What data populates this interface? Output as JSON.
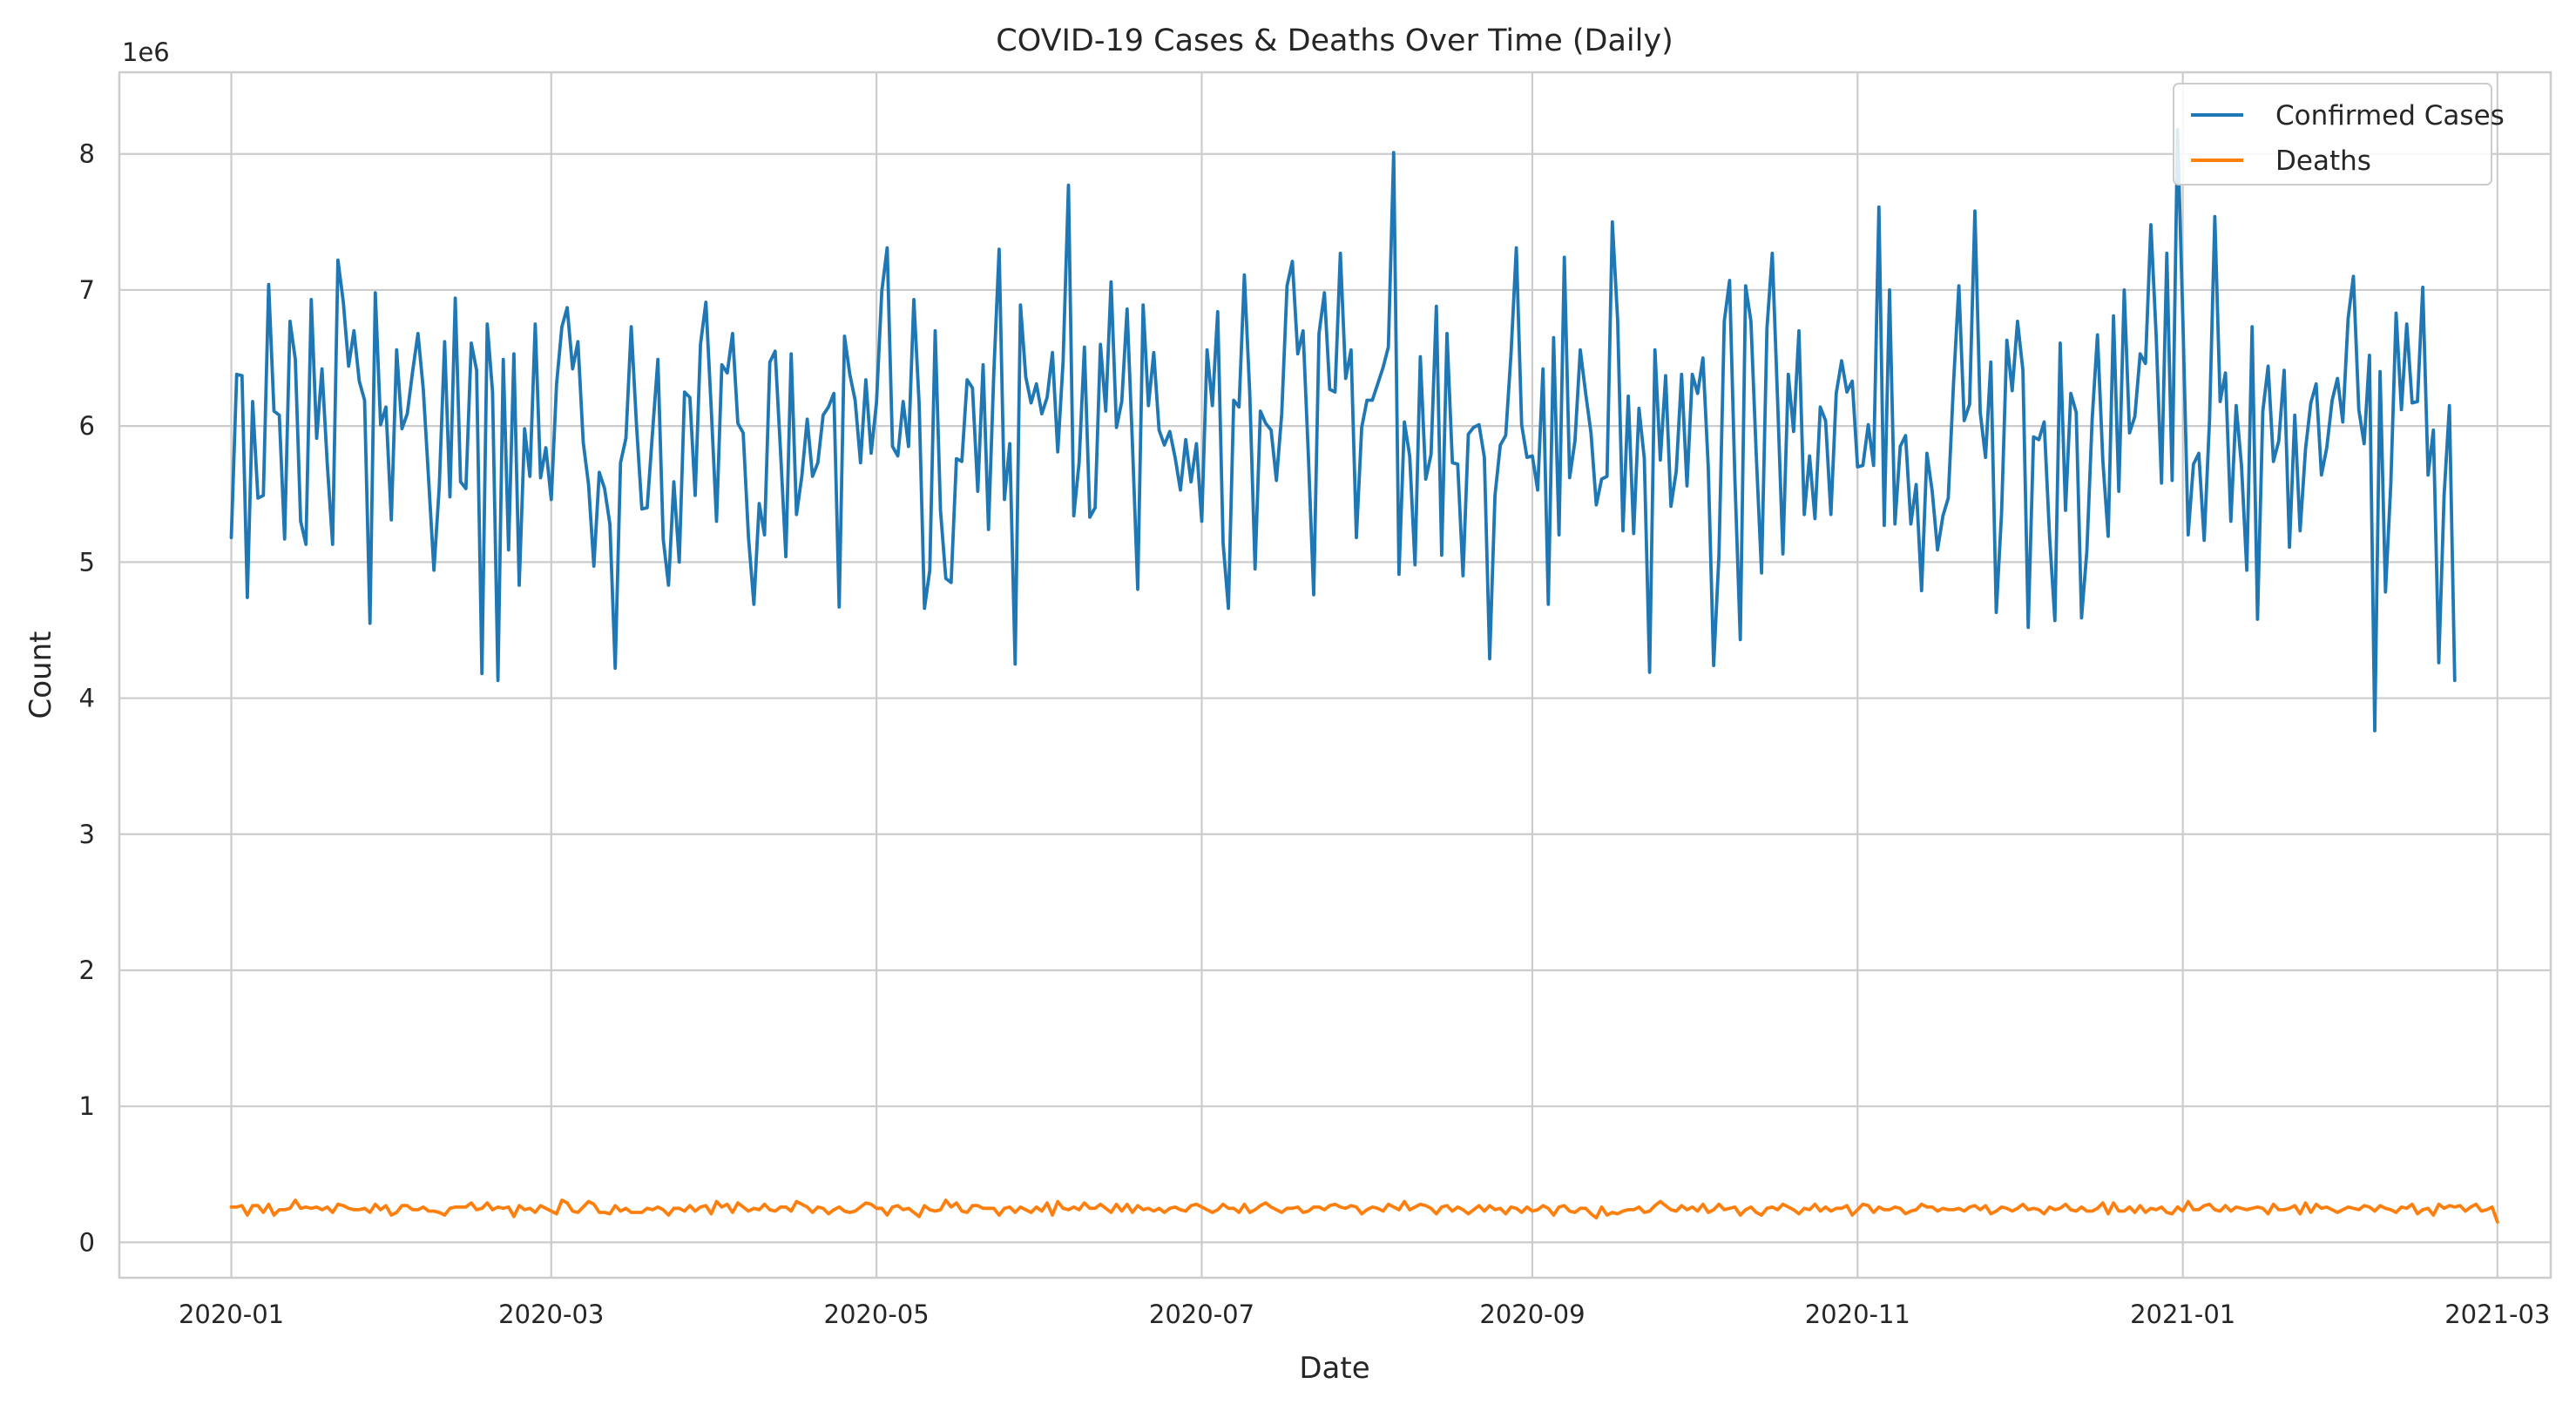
{
  "chart_data": {
    "type": "line",
    "title": "COVID-19 Cases & Deaths Over Time (Daily)",
    "xlabel": "Date",
    "ylabel": "Count",
    "y_offset_label": "1e6",
    "ylim": [
      -0.26,
      8.6
    ],
    "xlim": [
      "2019-12-11",
      "2021-03-11"
    ],
    "x_ticks": [
      "2020-01",
      "2020-03",
      "2020-05",
      "2020-07",
      "2020-09",
      "2020-11",
      "2021-01",
      "2021-03"
    ],
    "y_ticks": [
      0,
      1,
      2,
      3,
      4,
      5,
      6,
      7,
      8
    ],
    "y_tick_labels": [
      "0",
      "1",
      "2",
      "3",
      "4",
      "5",
      "6",
      "7",
      "8"
    ],
    "legend": {
      "placement": "top-right"
    },
    "start_date": "2020-01-01",
    "day_step": 1,
    "grid": true,
    "series": [
      {
        "name": "Confirmed Cases",
        "color": "#1f77b4",
        "unit": "millions",
        "values": [
          5.18,
          6.38,
          6.37,
          4.74,
          6.18,
          5.47,
          5.49,
          7.04,
          6.11,
          6.08,
          5.17,
          6.77,
          6.49,
          5.3,
          5.13,
          6.93,
          5.91,
          6.42,
          5.72,
          5.13,
          7.22,
          6.91,
          6.44,
          6.7,
          6.33,
          6.19,
          4.55,
          6.98,
          6.01,
          6.14,
          5.31,
          6.56,
          5.98,
          6.09,
          6.4,
          6.68,
          6.27,
          5.61,
          4.94,
          5.55,
          6.62,
          5.48,
          6.94,
          5.59,
          5.54,
          6.61,
          6.41,
          4.18,
          6.75,
          6.25,
          4.13,
          6.49,
          5.09,
          6.53,
          4.83,
          5.98,
          5.63,
          6.75,
          5.62,
          5.84,
          5.46,
          6.31,
          6.73,
          6.87,
          6.42,
          6.62,
          5.88,
          5.57,
          4.97,
          5.66,
          5.54,
          5.28,
          4.22,
          5.73,
          5.91,
          6.73,
          6.0,
          5.39,
          5.4,
          5.96,
          6.49,
          5.17,
          4.83,
          5.59,
          5.0,
          6.25,
          6.21,
          5.49,
          6.6,
          6.91,
          6.13,
          5.3,
          6.45,
          6.39,
          6.68,
          6.02,
          5.95,
          5.18,
          4.69,
          5.43,
          5.2,
          6.47,
          6.55,
          5.81,
          5.04,
          6.53,
          5.35,
          5.63,
          6.05,
          5.63,
          5.73,
          6.08,
          6.14,
          6.24,
          4.67,
          6.66,
          6.38,
          6.19,
          5.73,
          6.34,
          5.8,
          6.17,
          6.99,
          7.31,
          5.85,
          5.78,
          6.18,
          5.85,
          6.93,
          6.16,
          4.66,
          4.94,
          6.7,
          5.38,
          4.88,
          4.85,
          5.76,
          5.74,
          6.34,
          6.28,
          5.52,
          6.45,
          5.24,
          6.39,
          7.3,
          5.46,
          5.87,
          4.25,
          6.89,
          6.36,
          6.17,
          6.31,
          6.09,
          6.21,
          6.54,
          5.81,
          6.47,
          7.77,
          5.34,
          5.73,
          6.58,
          5.33,
          5.4,
          6.6,
          6.11,
          7.06,
          5.99,
          6.18,
          6.86,
          5.87,
          4.8,
          6.89,
          6.15,
          6.54,
          5.97,
          5.86,
          5.96,
          5.77,
          5.53,
          5.9,
          5.59,
          5.87,
          5.3,
          6.56,
          6.15,
          6.84,
          5.14,
          4.66,
          6.19,
          6.14,
          7.11,
          6.24,
          4.95,
          6.11,
          6.02,
          5.97,
          5.6,
          6.09,
          7.03,
          7.21,
          6.53,
          6.7,
          5.78,
          4.76,
          6.68,
          6.98,
          6.27,
          6.25,
          7.27,
          6.35,
          6.56,
          5.18,
          5.99,
          6.19,
          6.19,
          6.31,
          6.43,
          6.58,
          8.01,
          4.91,
          6.03,
          5.78,
          4.98,
          6.51,
          5.61,
          5.79,
          6.88,
          5.05,
          6.68,
          5.73,
          5.72,
          4.9,
          5.94,
          5.99,
          6.01,
          5.77,
          4.29,
          5.49,
          5.86,
          5.93,
          6.53,
          7.31,
          6.01,
          5.77,
          5.78,
          5.53,
          6.42,
          4.69,
          6.65,
          5.2,
          7.24,
          5.62,
          5.89,
          6.56,
          6.24,
          5.95,
          5.42,
          5.61,
          5.63,
          7.5,
          6.78,
          5.23,
          6.22,
          5.21,
          6.13,
          5.76,
          4.19,
          6.56,
          5.75,
          6.37,
          5.41,
          5.67,
          6.38,
          5.56,
          6.38,
          6.24,
          6.5,
          5.7,
          4.24,
          5.05,
          6.77,
          7.07,
          5.61,
          4.43,
          7.03,
          6.77,
          5.79,
          4.92,
          6.72,
          7.27,
          6.19,
          5.06,
          6.38,
          5.96,
          6.7,
          5.35,
          5.78,
          5.32,
          6.14,
          6.04,
          5.35,
          6.24,
          6.48,
          6.25,
          6.33,
          5.7,
          5.71,
          6.01,
          5.71,
          7.61,
          5.27,
          7.0,
          5.28,
          5.85,
          5.93,
          5.28,
          5.57,
          4.79,
          5.8,
          5.52,
          5.09,
          5.34,
          5.47,
          6.32,
          7.03,
          6.04,
          6.16,
          7.58,
          6.1,
          5.77,
          6.47,
          4.63,
          5.36,
          6.63,
          6.26,
          6.77,
          6.41,
          4.52,
          5.92,
          5.9,
          6.03,
          5.19,
          4.57,
          6.61,
          5.38,
          6.24,
          6.1,
          4.59,
          5.08,
          6.05,
          6.67,
          5.74,
          5.19,
          6.81,
          5.52,
          7.0,
          5.95,
          6.07,
          6.53,
          6.46,
          7.48,
          6.66,
          5.58,
          7.27,
          5.6,
          8.18,
          6.79,
          5.2,
          5.72,
          5.8,
          5.16,
          6.04,
          7.54,
          6.18,
          6.39,
          5.3,
          6.15,
          5.71,
          4.94,
          6.73,
          4.58,
          6.11,
          6.44,
          5.74,
          5.89,
          6.41,
          5.11,
          6.08,
          5.23,
          5.83,
          6.17,
          6.31,
          5.64,
          5.84,
          6.19,
          6.35,
          6.03,
          6.79,
          7.1,
          6.12,
          5.87,
          6.52,
          3.76,
          6.4,
          4.78,
          5.57,
          6.83,
          6.12,
          6.75,
          6.17,
          6.18,
          7.02,
          5.64,
          5.97,
          4.26,
          5.49,
          6.15,
          4.13
        ]
      },
      {
        "name": "Deaths",
        "color": "#ff7f0e",
        "unit": "millions",
        "values": [
          0.26,
          0.26,
          0.27,
          0.2,
          0.27,
          0.27,
          0.22,
          0.28,
          0.2,
          0.24,
          0.24,
          0.25,
          0.31,
          0.25,
          0.26,
          0.25,
          0.26,
          0.24,
          0.26,
          0.22,
          0.28,
          0.27,
          0.25,
          0.24,
          0.24,
          0.25,
          0.22,
          0.28,
          0.24,
          0.27,
          0.2,
          0.22,
          0.27,
          0.27,
          0.24,
          0.24,
          0.26,
          0.23,
          0.23,
          0.22,
          0.2,
          0.25,
          0.26,
          0.26,
          0.26,
          0.29,
          0.24,
          0.25,
          0.29,
          0.24,
          0.26,
          0.25,
          0.26,
          0.19,
          0.27,
          0.24,
          0.25,
          0.22,
          0.27,
          0.25,
          0.23,
          0.21,
          0.31,
          0.29,
          0.23,
          0.22,
          0.26,
          0.3,
          0.28,
          0.22,
          0.22,
          0.21,
          0.27,
          0.23,
          0.25,
          0.22,
          0.22,
          0.22,
          0.25,
          0.24,
          0.26,
          0.24,
          0.2,
          0.25,
          0.25,
          0.23,
          0.27,
          0.23,
          0.26,
          0.27,
          0.21,
          0.3,
          0.26,
          0.28,
          0.22,
          0.29,
          0.26,
          0.23,
          0.25,
          0.24,
          0.28,
          0.24,
          0.23,
          0.26,
          0.26,
          0.23,
          0.3,
          0.28,
          0.26,
          0.22,
          0.26,
          0.25,
          0.21,
          0.24,
          0.26,
          0.23,
          0.22,
          0.23,
          0.26,
          0.29,
          0.28,
          0.25,
          0.25,
          0.2,
          0.26,
          0.27,
          0.24,
          0.25,
          0.22,
          0.19,
          0.27,
          0.24,
          0.23,
          0.24,
          0.31,
          0.26,
          0.29,
          0.23,
          0.22,
          0.27,
          0.27,
          0.25,
          0.25,
          0.25,
          0.2,
          0.25,
          0.26,
          0.22,
          0.26,
          0.24,
          0.22,
          0.26,
          0.23,
          0.29,
          0.2,
          0.3,
          0.25,
          0.24,
          0.26,
          0.24,
          0.29,
          0.25,
          0.25,
          0.28,
          0.25,
          0.22,
          0.28,
          0.23,
          0.28,
          0.22,
          0.27,
          0.24,
          0.25,
          0.23,
          0.25,
          0.22,
          0.25,
          0.26,
          0.24,
          0.23,
          0.27,
          0.28,
          0.26,
          0.24,
          0.22,
          0.24,
          0.28,
          0.25,
          0.25,
          0.22,
          0.28,
          0.22,
          0.24,
          0.27,
          0.29,
          0.26,
          0.24,
          0.22,
          0.25,
          0.25,
          0.26,
          0.22,
          0.23,
          0.26,
          0.26,
          0.24,
          0.27,
          0.28,
          0.26,
          0.25,
          0.27,
          0.26,
          0.21,
          0.24,
          0.26,
          0.25,
          0.23,
          0.28,
          0.26,
          0.24,
          0.3,
          0.24,
          0.26,
          0.28,
          0.27,
          0.25,
          0.21,
          0.26,
          0.27,
          0.23,
          0.26,
          0.24,
          0.21,
          0.24,
          0.27,
          0.23,
          0.27,
          0.24,
          0.25,
          0.21,
          0.26,
          0.25,
          0.22,
          0.26,
          0.23,
          0.24,
          0.27,
          0.25,
          0.2,
          0.26,
          0.27,
          0.23,
          0.22,
          0.25,
          0.25,
          0.21,
          0.18,
          0.26,
          0.2,
          0.22,
          0.21,
          0.23,
          0.24,
          0.24,
          0.26,
          0.22,
          0.23,
          0.27,
          0.3,
          0.27,
          0.24,
          0.23,
          0.27,
          0.24,
          0.26,
          0.23,
          0.28,
          0.22,
          0.24,
          0.28,
          0.24,
          0.25,
          0.26,
          0.2,
          0.24,
          0.26,
          0.22,
          0.2,
          0.25,
          0.26,
          0.24,
          0.28,
          0.26,
          0.24,
          0.21,
          0.25,
          0.24,
          0.28,
          0.23,
          0.26,
          0.23,
          0.25,
          0.25,
          0.27,
          0.2,
          0.24,
          0.28,
          0.27,
          0.22,
          0.26,
          0.24,
          0.24,
          0.26,
          0.25,
          0.21,
          0.23,
          0.24,
          0.28,
          0.26,
          0.26,
          0.23,
          0.25,
          0.24,
          0.24,
          0.25,
          0.23,
          0.26,
          0.27,
          0.24,
          0.27,
          0.21,
          0.23,
          0.26,
          0.25,
          0.23,
          0.25,
          0.28,
          0.24,
          0.25,
          0.24,
          0.21,
          0.26,
          0.24,
          0.25,
          0.28,
          0.24,
          0.23,
          0.26,
          0.23,
          0.23,
          0.25,
          0.29,
          0.21,
          0.29,
          0.23,
          0.23,
          0.26,
          0.22,
          0.27,
          0.22,
          0.25,
          0.24,
          0.26,
          0.22,
          0.21,
          0.26,
          0.23,
          0.3,
          0.24,
          0.24,
          0.27,
          0.28,
          0.24,
          0.23,
          0.27,
          0.23,
          0.26,
          0.25,
          0.24,
          0.25,
          0.26,
          0.25,
          0.21,
          0.28,
          0.24,
          0.24,
          0.25,
          0.27,
          0.21,
          0.29,
          0.22,
          0.28,
          0.25,
          0.26,
          0.24,
          0.22,
          0.24,
          0.26,
          0.25,
          0.24,
          0.27,
          0.26,
          0.23,
          0.27,
          0.25,
          0.24,
          0.22,
          0.26,
          0.25,
          0.28,
          0.21,
          0.24,
          0.25,
          0.2,
          0.28,
          0.25,
          0.27,
          0.26,
          0.27,
          0.23,
          0.26,
          0.28,
          0.23,
          0.24,
          0.26,
          0.15
        ]
      }
    ]
  }
}
